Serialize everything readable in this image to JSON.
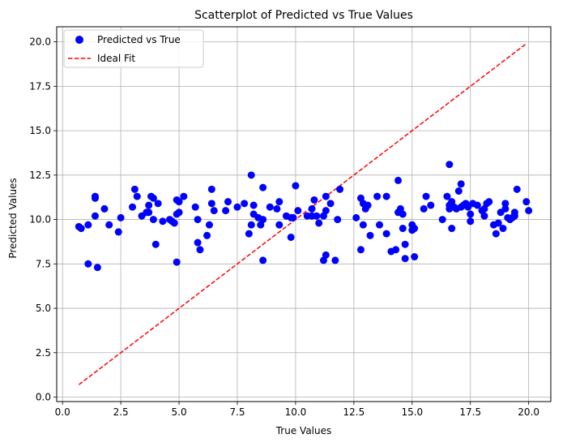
{
  "chart_data": {
    "type": "scatter",
    "title": "Scatterplot of Predicted vs True Values",
    "xlabel": "True Values",
    "ylabel": "Predicted Values",
    "xlim": [
      -0.25,
      20.95
    ],
    "ylim": [
      -0.25,
      20.85
    ],
    "xticks": [
      0.0,
      2.5,
      5.0,
      7.5,
      10.0,
      12.5,
      15.0,
      17.5,
      20.0
    ],
    "xtick_labels": [
      "0.0",
      "2.5",
      "5.0",
      "7.5",
      "10.0",
      "12.5",
      "15.0",
      "17.5",
      "20.0"
    ],
    "yticks": [
      0.0,
      2.5,
      5.0,
      7.5,
      10.0,
      12.5,
      15.0,
      17.5,
      20.0
    ],
    "ytick_labels": [
      "0.0",
      "2.5",
      "5.0",
      "7.5",
      "10.0",
      "12.5",
      "15.0",
      "17.5",
      "20.0"
    ],
    "grid": true,
    "legend_position": "top-left",
    "series": [
      {
        "name": "Predicted vs True",
        "kind": "scatter",
        "color": "#0000ff",
        "points": [
          [
            0.7,
            9.6
          ],
          [
            0.8,
            9.5
          ],
          [
            1.1,
            7.5
          ],
          [
            1.1,
            9.7
          ],
          [
            1.4,
            11.3
          ],
          [
            1.4,
            11.2
          ],
          [
            1.4,
            10.2
          ],
          [
            1.5,
            7.3
          ],
          [
            1.8,
            10.6
          ],
          [
            2.0,
            9.7
          ],
          [
            2.4,
            9.3
          ],
          [
            2.5,
            10.1
          ],
          [
            3.0,
            10.7
          ],
          [
            3.1,
            11.7
          ],
          [
            3.2,
            11.3
          ],
          [
            3.4,
            10.2
          ],
          [
            3.6,
            10.4
          ],
          [
            3.7,
            10.4
          ],
          [
            3.7,
            10.8
          ],
          [
            3.8,
            11.3
          ],
          [
            3.9,
            11.2
          ],
          [
            3.9,
            10.0
          ],
          [
            4.0,
            8.6
          ],
          [
            4.1,
            10.9
          ],
          [
            4.3,
            9.9
          ],
          [
            4.6,
            10.0
          ],
          [
            4.7,
            9.9
          ],
          [
            4.8,
            9.8
          ],
          [
            4.9,
            7.6
          ],
          [
            4.9,
            10.3
          ],
          [
            4.9,
            11.1
          ],
          [
            5.0,
            11.0
          ],
          [
            5.0,
            10.4
          ],
          [
            5.2,
            11.3
          ],
          [
            5.7,
            10.7
          ],
          [
            5.8,
            8.7
          ],
          [
            5.8,
            10.0
          ],
          [
            5.9,
            8.3
          ],
          [
            6.2,
            9.1
          ],
          [
            6.3,
            9.7
          ],
          [
            6.4,
            11.7
          ],
          [
            6.4,
            10.9
          ],
          [
            6.5,
            10.5
          ],
          [
            7.0,
            10.5
          ],
          [
            7.1,
            11.0
          ],
          [
            7.5,
            10.7
          ],
          [
            7.8,
            10.9
          ],
          [
            8.0,
            9.2
          ],
          [
            8.1,
            9.7
          ],
          [
            8.1,
            12.5
          ],
          [
            8.2,
            10.3
          ],
          [
            8.2,
            10.8
          ],
          [
            8.4,
            10.1
          ],
          [
            8.5,
            9.7
          ],
          [
            8.6,
            11.8
          ],
          [
            8.6,
            7.7
          ],
          [
            8.6,
            10.0
          ],
          [
            8.9,
            10.7
          ],
          [
            9.2,
            10.6
          ],
          [
            9.3,
            9.7
          ],
          [
            9.3,
            11.0
          ],
          [
            9.6,
            10.2
          ],
          [
            9.8,
            10.1
          ],
          [
            9.8,
            9.0
          ],
          [
            9.9,
            10.1
          ],
          [
            10.0,
            11.9
          ],
          [
            10.1,
            10.5
          ],
          [
            10.5,
            10.2
          ],
          [
            10.7,
            10.2
          ],
          [
            10.7,
            10.6
          ],
          [
            10.8,
            11.1
          ],
          [
            10.9,
            10.2
          ],
          [
            11.0,
            9.8
          ],
          [
            11.2,
            10.2
          ],
          [
            11.2,
            7.7
          ],
          [
            11.3,
            11.3
          ],
          [
            11.3,
            8.0
          ],
          [
            11.3,
            10.5
          ],
          [
            11.5,
            10.9
          ],
          [
            11.7,
            7.7
          ],
          [
            11.8,
            10.0
          ],
          [
            11.9,
            11.7
          ],
          [
            12.6,
            10.1
          ],
          [
            12.8,
            8.3
          ],
          [
            12.8,
            11.2
          ],
          [
            12.9,
            10.9
          ],
          [
            12.9,
            9.7
          ],
          [
            13.0,
            10.6
          ],
          [
            13.1,
            10.8
          ],
          [
            13.2,
            9.1
          ],
          [
            13.5,
            11.3
          ],
          [
            13.6,
            9.7
          ],
          [
            13.9,
            11.3
          ],
          [
            13.9,
            9.2
          ],
          [
            14.1,
            8.2
          ],
          [
            14.3,
            8.3
          ],
          [
            14.4,
            12.2
          ],
          [
            14.4,
            10.4
          ],
          [
            14.5,
            10.6
          ],
          [
            14.6,
            10.3
          ],
          [
            14.6,
            9.5
          ],
          [
            14.7,
            8.6
          ],
          [
            14.7,
            7.8
          ],
          [
            15.0,
            9.7
          ],
          [
            15.0,
            9.4
          ],
          [
            15.1,
            9.5
          ],
          [
            15.1,
            7.9
          ],
          [
            15.5,
            10.6
          ],
          [
            15.6,
            11.3
          ],
          [
            15.8,
            10.8
          ],
          [
            16.3,
            10.0
          ],
          [
            16.5,
            11.3
          ],
          [
            16.6,
            13.1
          ],
          [
            16.6,
            10.8
          ],
          [
            16.6,
            10.6
          ],
          [
            16.7,
            9.5
          ],
          [
            16.7,
            11.0
          ],
          [
            16.8,
            10.7
          ],
          [
            16.9,
            10.6
          ],
          [
            17.0,
            11.6
          ],
          [
            17.1,
            12.0
          ],
          [
            17.1,
            10.7
          ],
          [
            17.2,
            10.8
          ],
          [
            17.3,
            10.9
          ],
          [
            17.4,
            10.7
          ],
          [
            17.5,
            9.9
          ],
          [
            17.5,
            10.3
          ],
          [
            17.6,
            10.9
          ],
          [
            17.8,
            10.8
          ],
          [
            18.0,
            10.5
          ],
          [
            18.1,
            10.2
          ],
          [
            18.1,
            10.6
          ],
          [
            18.2,
            10.9
          ],
          [
            18.3,
            11.0
          ],
          [
            18.5,
            9.7
          ],
          [
            18.6,
            9.2
          ],
          [
            18.7,
            9.8
          ],
          [
            18.8,
            10.4
          ],
          [
            18.9,
            9.5
          ],
          [
            19.0,
            10.9
          ],
          [
            19.0,
            10.6
          ],
          [
            19.1,
            10.1
          ],
          [
            19.2,
            10.0
          ],
          [
            19.3,
            10.1
          ],
          [
            19.4,
            10.4
          ],
          [
            19.4,
            10.2
          ],
          [
            19.5,
            11.7
          ],
          [
            19.9,
            11.0
          ],
          [
            20.0,
            10.5
          ]
        ]
      },
      {
        "name": "Ideal Fit",
        "kind": "line",
        "color": "#ff0000",
        "dashed": true,
        "x": [
          0.7,
          19.9
        ],
        "y": [
          0.7,
          19.9
        ]
      }
    ]
  }
}
